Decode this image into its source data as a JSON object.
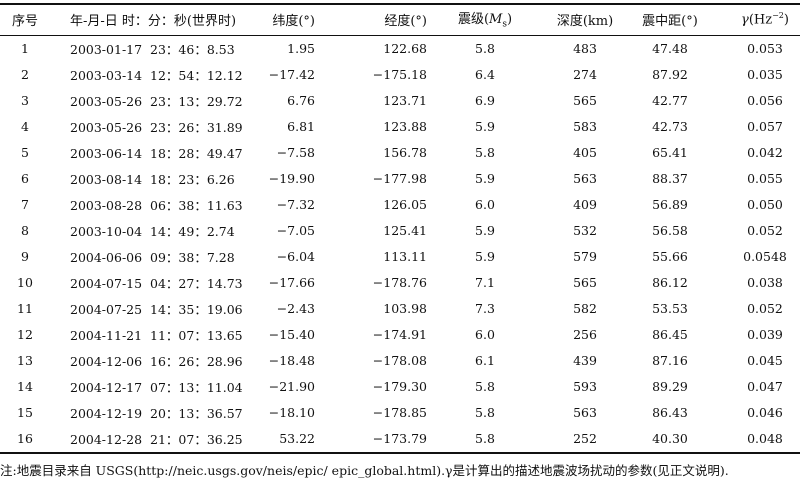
{
  "headers": {
    "no": "序号",
    "time": "年-月-日 时：分：秒(世界时)",
    "lat": "纬度(°)",
    "lon": "经度(°)",
    "mag_prefix": "震级(",
    "mag_var": "M",
    "mag_sub": "s",
    "mag_suffix": ")",
    "depth": "深度(km)",
    "dist": "震中距(°)",
    "gamma_sym": "γ",
    "gamma_unit_prefix": "(Hz",
    "gamma_unit_exp": "−2",
    "gamma_unit_suffix": ")"
  },
  "rows": [
    {
      "no": "1",
      "datetime": "2003-01-17  23：46：8.53",
      "lat": "1.95",
      "lon": "122.68",
      "mag": "5.8",
      "depth": "483",
      "dist": "47.48",
      "gamma": "0.053"
    },
    {
      "no": "2",
      "datetime": "2003-03-14  12：54：12.12",
      "lat": "−17.42",
      "lon": "−175.18",
      "mag": "6.4",
      "depth": "274",
      "dist": "87.92",
      "gamma": "0.035"
    },
    {
      "no": "3",
      "datetime": "2003-05-26  23：13：29.72",
      "lat": "6.76",
      "lon": "123.71",
      "mag": "6.9",
      "depth": "565",
      "dist": "42.77",
      "gamma": "0.056"
    },
    {
      "no": "4",
      "datetime": "2003-05-26  23：26：31.89",
      "lat": "6.81",
      "lon": "123.88",
      "mag": "5.9",
      "depth": "583",
      "dist": "42.73",
      "gamma": "0.057"
    },
    {
      "no": "5",
      "datetime": "2003-06-14  18：28：49.47",
      "lat": "−7.58",
      "lon": "156.78",
      "mag": "5.8",
      "depth": "405",
      "dist": "65.41",
      "gamma": "0.042"
    },
    {
      "no": "6",
      "datetime": "2003-08-14  18：23：6.26",
      "lat": "−19.90",
      "lon": "−177.98",
      "mag": "5.9",
      "depth": "563",
      "dist": "88.37",
      "gamma": "0.055"
    },
    {
      "no": "7",
      "datetime": "2003-08-28  06：38：11.63",
      "lat": "−7.32",
      "lon": "126.05",
      "mag": "6.0",
      "depth": "409",
      "dist": "56.89",
      "gamma": "0.050"
    },
    {
      "no": "8",
      "datetime": "2003-10-04  14：49：2.74",
      "lat": "−7.05",
      "lon": "125.41",
      "mag": "5.9",
      "depth": "532",
      "dist": "56.58",
      "gamma": "0.052"
    },
    {
      "no": "9",
      "datetime": "2004-06-06  09：38：7.28",
      "lat": "−6.04",
      "lon": "113.11",
      "mag": "5.9",
      "depth": "579",
      "dist": "55.66",
      "gamma": "0.0548"
    },
    {
      "no": "10",
      "datetime": "2004-07-15  04：27：14.73",
      "lat": "−17.66",
      "lon": "−178.76",
      "mag": "7.1",
      "depth": "565",
      "dist": "86.12",
      "gamma": "0.038"
    },
    {
      "no": "11",
      "datetime": "2004-07-25  14：35：19.06",
      "lat": "−2.43",
      "lon": "103.98",
      "mag": "7.3",
      "depth": "582",
      "dist": "53.53",
      "gamma": "0.052"
    },
    {
      "no": "12",
      "datetime": "2004-11-21  11：07：13.65",
      "lat": "−15.40",
      "lon": "−174.91",
      "mag": "6.0",
      "depth": "256",
      "dist": "86.45",
      "gamma": "0.039"
    },
    {
      "no": "13",
      "datetime": "2004-12-06  16：26：28.96",
      "lat": "−18.48",
      "lon": "−178.08",
      "mag": "6.1",
      "depth": "439",
      "dist": "87.16",
      "gamma": "0.045"
    },
    {
      "no": "14",
      "datetime": "2004-12-17  07：13：11.04",
      "lat": "−21.90",
      "lon": "−179.30",
      "mag": "5.8",
      "depth": "593",
      "dist": "89.29",
      "gamma": "0.047"
    },
    {
      "no": "15",
      "datetime": "2004-12-19  20：13：36.57",
      "lat": "−18.10",
      "lon": "−178.85",
      "mag": "5.8",
      "depth": "563",
      "dist": "86.43",
      "gamma": "0.046"
    },
    {
      "no": "16",
      "datetime": "2004-12-28  21：07：36.25",
      "lat": "53.22",
      "lon": "−173.79",
      "mag": "5.8",
      "depth": "252",
      "dist": "40.30",
      "gamma": "0.048"
    }
  ],
  "note": "注:地震目录来自 USGS(http://neic.usgs.gov/neis/epic/ epic_global.html).γ是计算出的描述地震波场扰动的参数(见正文说明)."
}
